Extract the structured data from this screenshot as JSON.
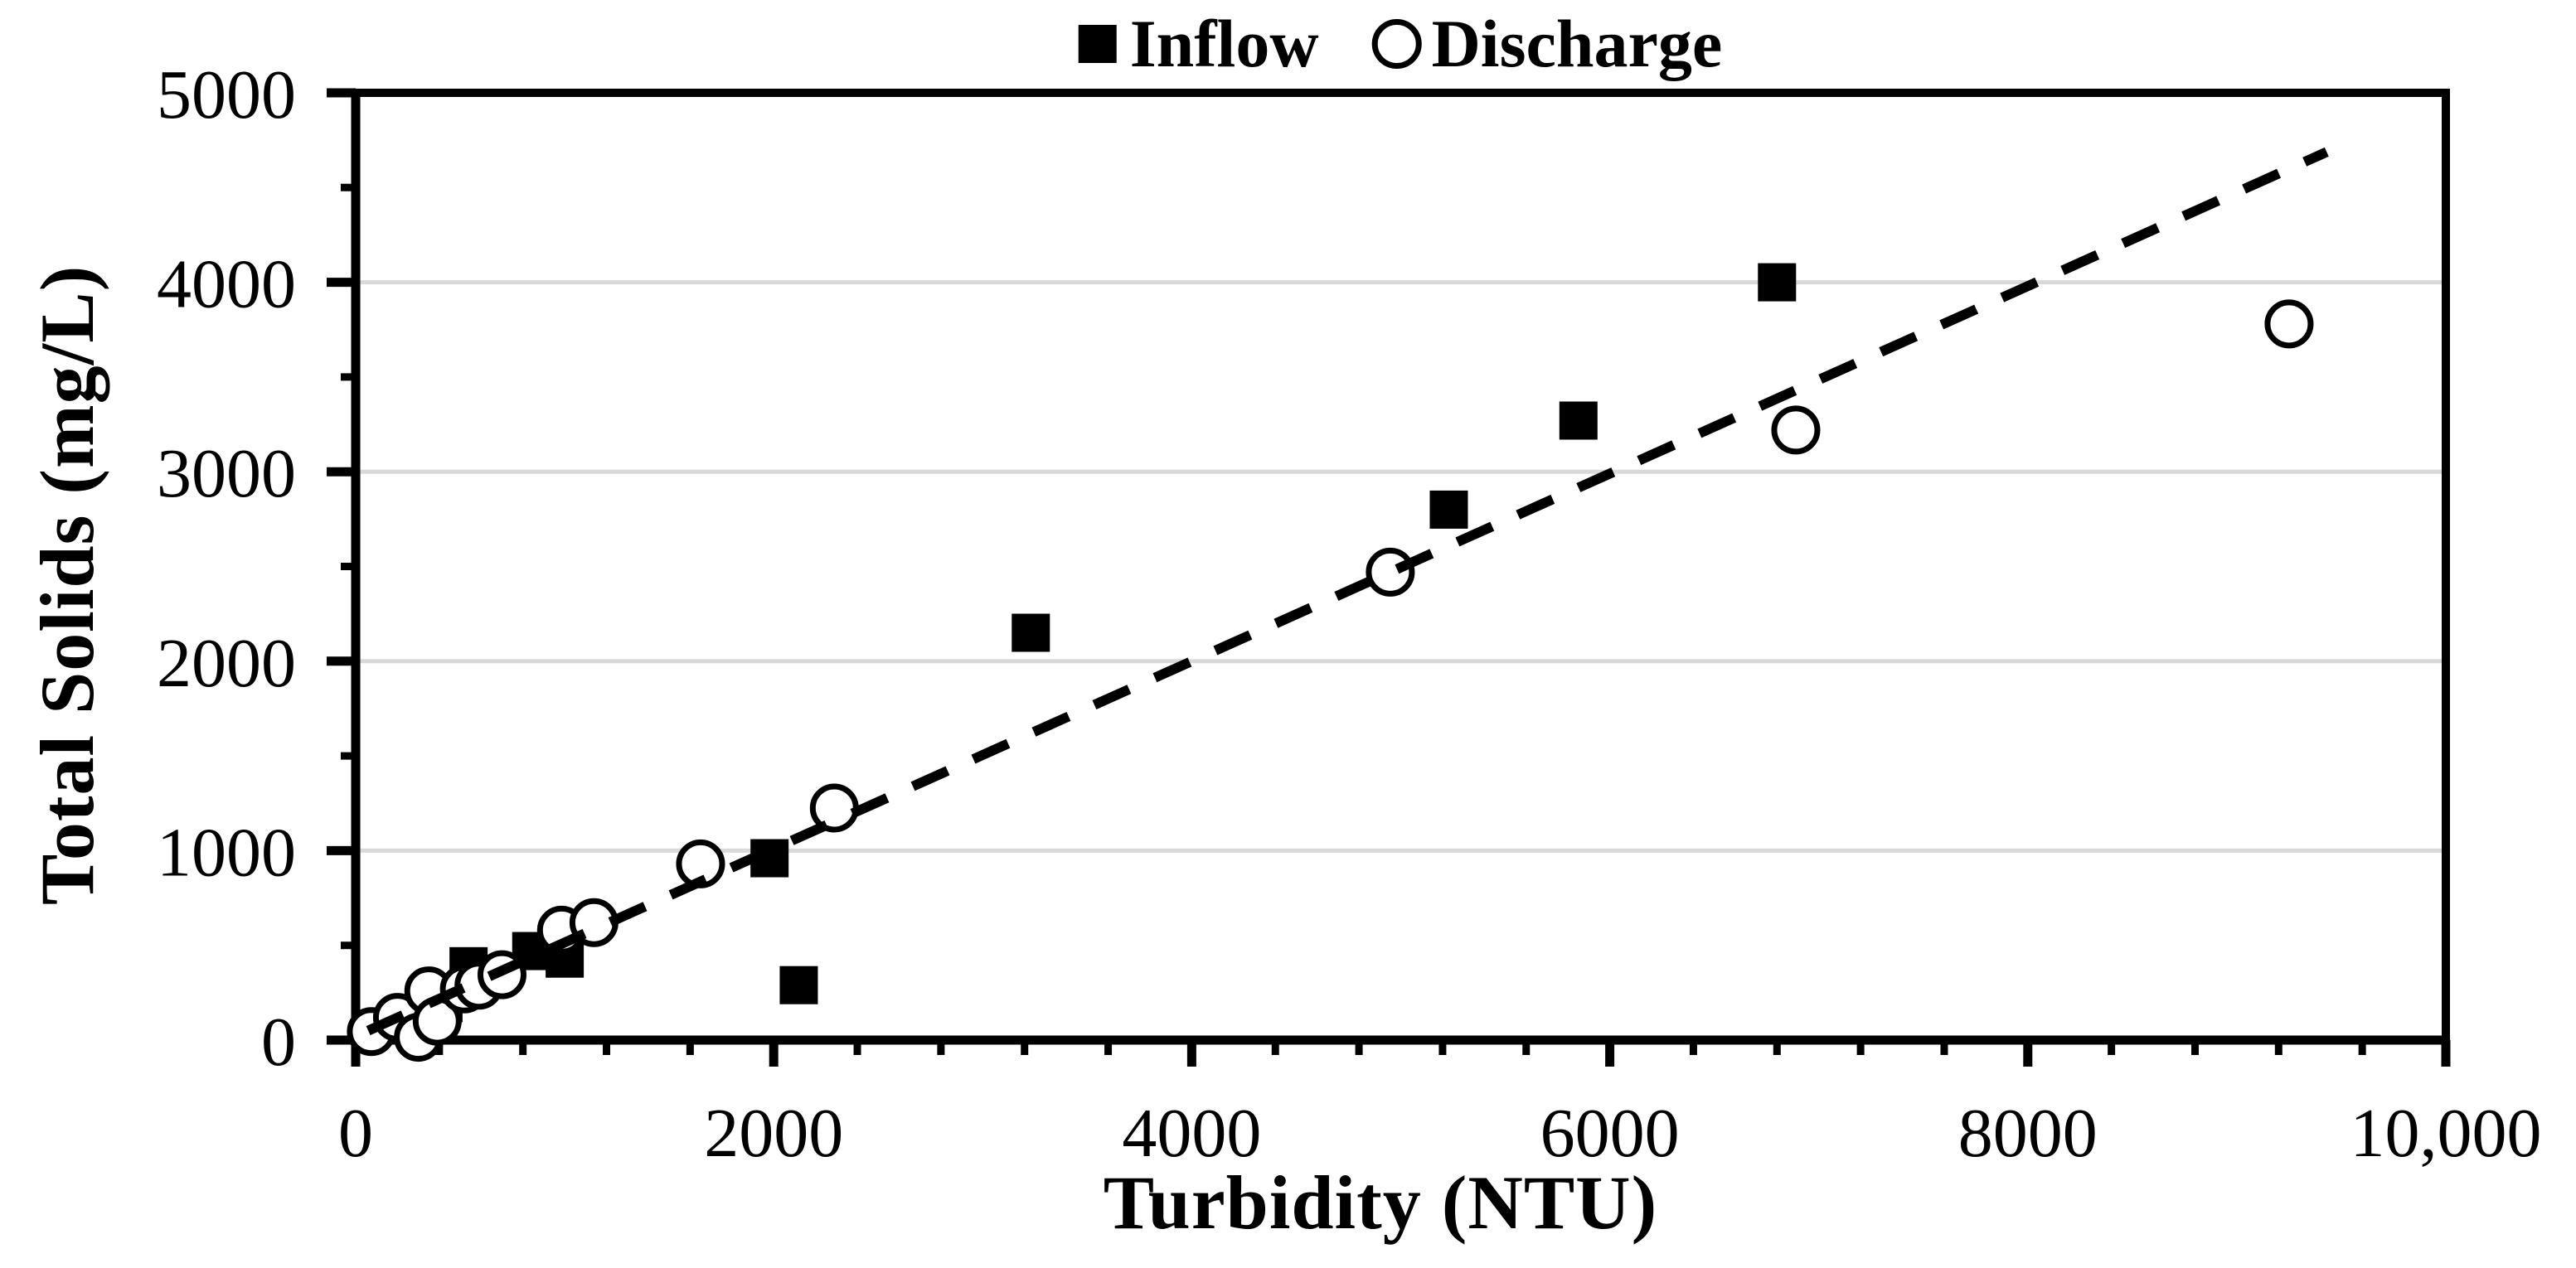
{
  "colors": {
    "accent": "#000000",
    "gridline": "#d9d9d9",
    "background": "#ffffff"
  },
  "chart_data": {
    "type": "scatter",
    "title": "",
    "xlabel": "Turbidity (NTU)",
    "ylabel": "Total Solids (mg/L)",
    "xlim": [
      0,
      10000
    ],
    "ylim": [
      0,
      5000
    ],
    "x_major_ticks": [
      0,
      2000,
      4000,
      6000,
      8000,
      10000
    ],
    "x_tick_labels": [
      "0",
      "2000",
      "4000",
      "6000",
      "8000",
      "10,000"
    ],
    "x_minor_step": 400,
    "y_major_ticks": [
      0,
      1000,
      2000,
      3000,
      4000,
      5000
    ],
    "y_tick_labels": [
      "0",
      "1000",
      "2000",
      "3000",
      "4000",
      "5000"
    ],
    "y_minor_step": 500,
    "grid": {
      "horizontal_at": [
        1000,
        2000,
        3000,
        4000
      ],
      "vertical": false
    },
    "legend_position": "top-center",
    "series": [
      {
        "name": "Inflow",
        "marker": "filled-square",
        "color": "#000000",
        "points": [
          [
            420,
            195
          ],
          [
            540,
            390
          ],
          [
            840,
            470
          ],
          [
            1000,
            430
          ],
          [
            1980,
            960
          ],
          [
            2120,
            290
          ],
          [
            3230,
            2150
          ],
          [
            5230,
            2800
          ],
          [
            5850,
            3270
          ],
          [
            6800,
            4000
          ]
        ]
      },
      {
        "name": "Discharge",
        "marker": "open-circle",
        "color": "#000000",
        "points": [
          [
            75,
            45
          ],
          [
            200,
            120
          ],
          [
            300,
            15
          ],
          [
            350,
            260
          ],
          [
            390,
            100
          ],
          [
            520,
            270
          ],
          [
            590,
            290
          ],
          [
            700,
            345
          ],
          [
            985,
            580
          ],
          [
            1140,
            620
          ],
          [
            1650,
            930
          ],
          [
            2290,
            1225
          ],
          [
            4950,
            2470
          ],
          [
            6890,
            3220
          ],
          [
            9250,
            3780
          ]
        ]
      }
    ],
    "trendline": {
      "style": "dashed",
      "slope": 0.495,
      "intercept": 20,
      "x_start": 60,
      "x_end": 9430
    }
  }
}
